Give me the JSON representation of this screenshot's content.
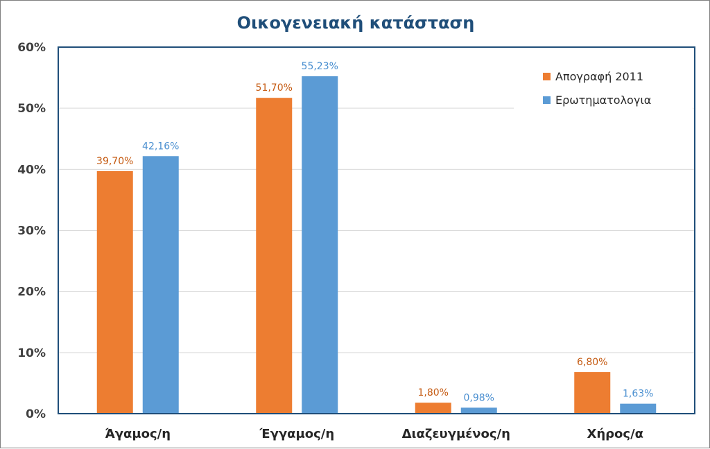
{
  "chart_data": {
    "type": "bar",
    "title": "Οικογενειακή κατάσταση",
    "categories": [
      "Άγαμος/η",
      "Έγγαμος/η",
      "Διαζευγμένος/η",
      "Χήρος/α"
    ],
    "series": [
      {
        "name": "Απογραφή 2011",
        "color": "#ed7d31",
        "values": [
          39.7,
          51.7,
          1.8,
          6.8
        ],
        "labels": [
          "39,70%",
          "51,70%",
          "1,80%",
          "6,80%"
        ]
      },
      {
        "name": "Ερωτηματολογια",
        "color": "#5b9bd5",
        "values": [
          42.16,
          55.23,
          0.98,
          1.63
        ],
        "labels": [
          "42,16%",
          "55,23%",
          "0,98%",
          "1,63%"
        ]
      }
    ],
    "yticks": [
      "0%",
      "10%",
      "20%",
      "30%",
      "40%",
      "50%",
      "60%"
    ],
    "ylim": [
      0,
      60
    ],
    "grid": true,
    "legend_position": "top-right",
    "plot_border_color": "#1f4e79"
  }
}
